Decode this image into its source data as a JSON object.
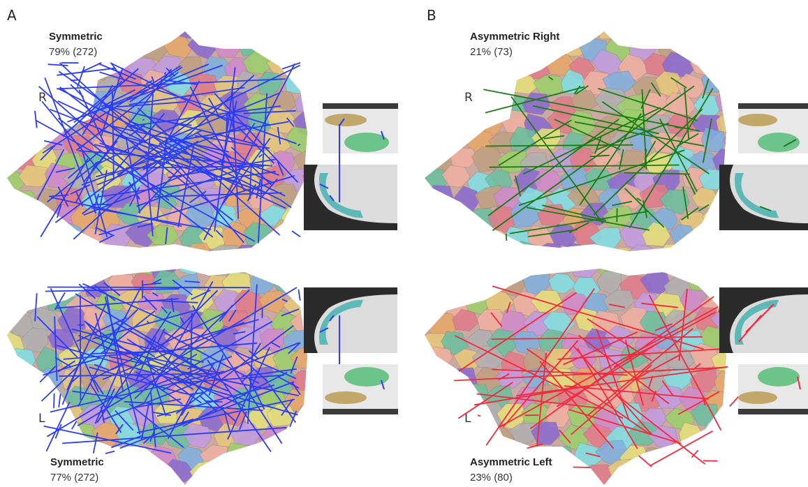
{
  "panels": [
    {
      "letter": "A",
      "top": {
        "title": "Symmetric",
        "stat": "79% (272)",
        "hemisphere": "R"
      },
      "bottom": {
        "title": "Symmetric",
        "stat": "77% (272)",
        "hemisphere": "L"
      },
      "line_color_top": "#2a3cf5",
      "line_color_bottom": "#2a3cf5"
    },
    {
      "letter": "B",
      "top": {
        "title": "Asymmetric Right",
        "stat": "21% (73)",
        "hemisphere": "R"
      },
      "bottom": {
        "title": "Asymmetric Left",
        "stat": "23% (80)",
        "hemisphere": "L"
      },
      "line_color_top": "#1a7a14",
      "line_color_bottom": "#f2283c"
    }
  ],
  "colors": {
    "parcel_palette": [
      "#e8a86a",
      "#9ad06a",
      "#7fe0e6",
      "#c29be0",
      "#e07a8a",
      "#e6c87a",
      "#7fb0e0",
      "#b0b0b0",
      "#8a6ad0",
      "#e6e07a",
      "#6ac0a0",
      "#d08acb",
      "#f0b0a0",
      "#c0a080"
    ],
    "cortex_dark": "#2b2b2b",
    "wm_gray": "#cfcfcf",
    "inset_teal": "#5fb8b8",
    "inset_green": "#6cc48a",
    "inset_tan": "#c2a76a"
  }
}
